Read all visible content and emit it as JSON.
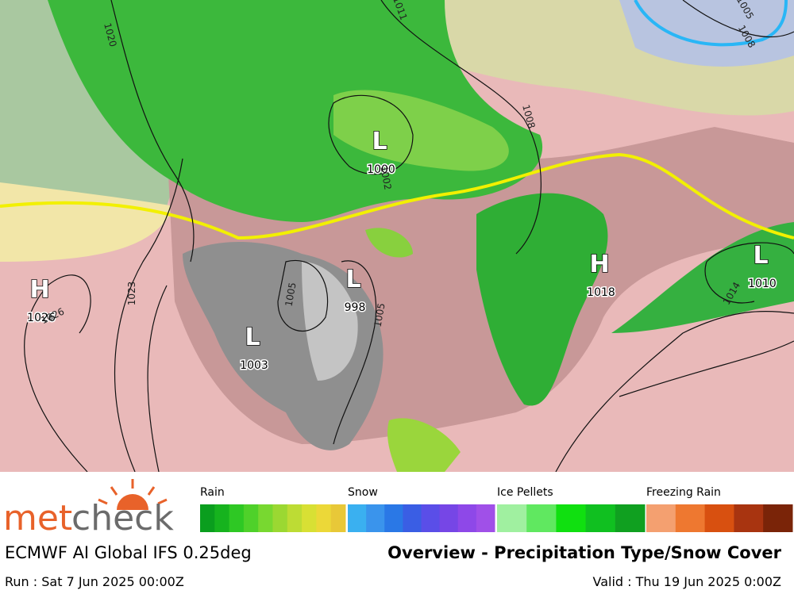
{
  "map": {
    "pressure_centers": [
      {
        "symbol": "H",
        "value": "1026"
      },
      {
        "symbol": "L",
        "value": "1000"
      },
      {
        "symbol": "L",
        "value": "998"
      },
      {
        "symbol": "L",
        "value": "1003"
      },
      {
        "symbol": "H",
        "value": "1018"
      },
      {
        "symbol": "L",
        "value": "1010"
      }
    ],
    "isobar_labels": [
      "1026",
      "1023",
      "1020",
      "1011",
      "1008",
      "1005",
      "1005",
      "1002",
      "1014",
      "1005",
      "1008"
    ]
  },
  "legend": {
    "groups": [
      "Rain",
      "Snow",
      "Ice Pellets",
      "Freezing Rain"
    ]
  },
  "footer": {
    "brand_part1": "met",
    "brand_part2": "check",
    "model": "ECMWF AI Global IFS 0.25deg",
    "product": "Overview - Precipitation Type/Snow Cover",
    "run": "Run : Sat 7 Jun 2025 00:00Z",
    "valid": "Valid : Thu 19 Jun 2025 0:00Z"
  }
}
